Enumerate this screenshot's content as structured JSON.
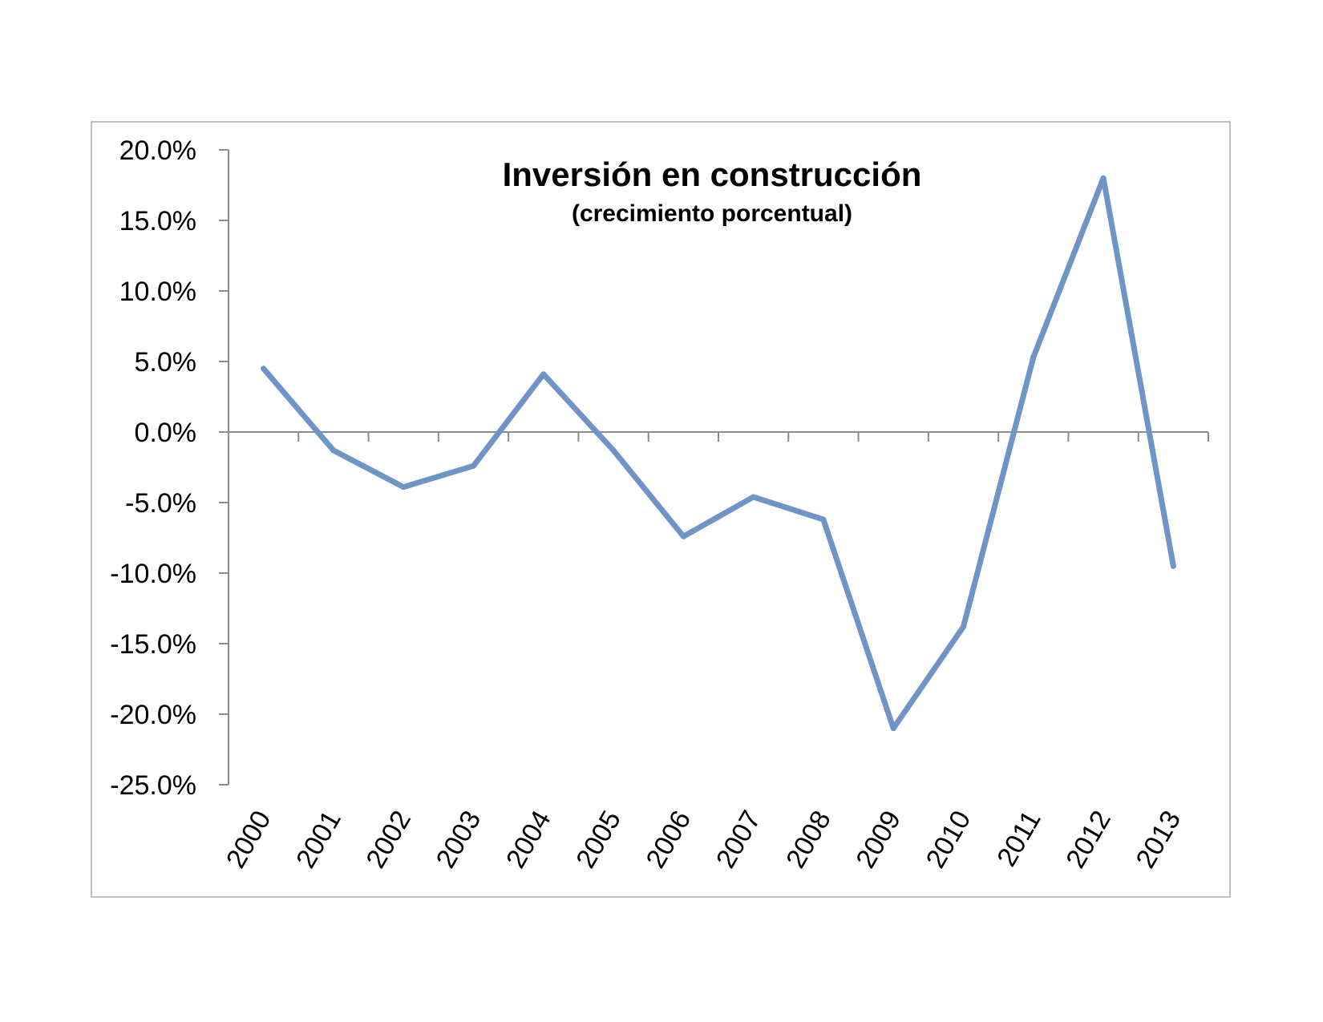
{
  "chart_data": {
    "type": "line",
    "title": "Inversión en construcción",
    "subtitle": "(crecimiento porcentual)",
    "xlabel": "",
    "ylabel": "",
    "categories": [
      "2000",
      "2001",
      "2002",
      "2003",
      "2004",
      "2005",
      "2006",
      "2007",
      "2008",
      "2009",
      "2010",
      "2011",
      "2012",
      "2013"
    ],
    "series": [
      {
        "values": [
          4.5,
          -1.3,
          -3.9,
          -2.4,
          4.1,
          -1.3,
          -7.4,
          -4.6,
          -6.2,
          -21.0,
          -13.8,
          5.3,
          18.0,
          -9.5
        ],
        "color": "#6F94C6"
      }
    ],
    "ylim": [
      -25,
      20
    ],
    "ytick_step": 5,
    "ytick_labels": [
      "20.0%",
      "15.0%",
      "10.0%",
      "5.0%",
      "0.0%",
      "-5.0%",
      "-10.0%",
      "-15.0%",
      "-20.0%",
      "-25.0%"
    ],
    "grid": false,
    "legend": "none"
  },
  "colors": {
    "axis": "#8C8C8C",
    "frame": "#BFBFBF",
    "line": "#6F94C6"
  }
}
